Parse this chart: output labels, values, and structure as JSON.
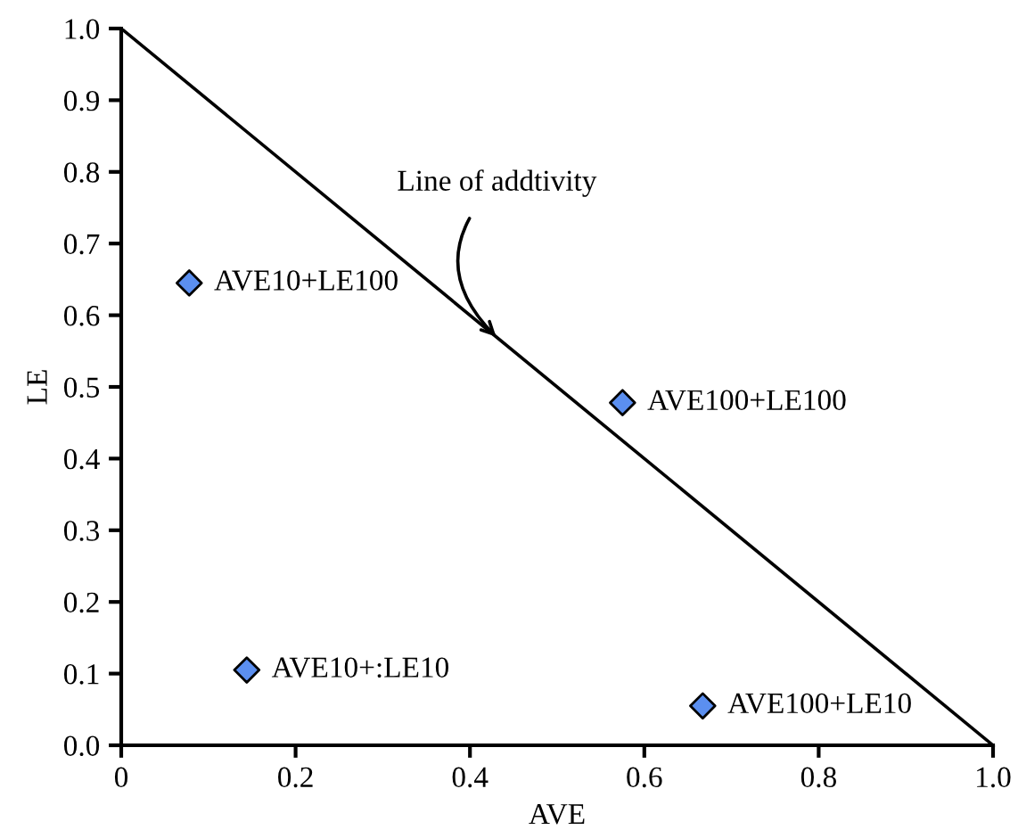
{
  "chart_data": {
    "type": "scatter",
    "xlabel": "AVE",
    "ylabel": "LE",
    "series": [
      {
        "type": "line",
        "x": [
          0,
          1
        ],
        "values": [
          1,
          0
        ],
        "color": "#000000",
        "marker": "none"
      },
      {
        "x": [
          0.078,
          0.144,
          0.575,
          0.667
        ],
        "values": [
          0.645,
          0.105,
          0.478,
          0.055
        ],
        "color": "#5b8ff0",
        "marker": "diamond"
      }
    ],
    "annotations": [
      {
        "text": "AVE10+LE100",
        "x": 0.078,
        "y": 0.645
      },
      {
        "text": "AVE10+:LE10",
        "x": 0.144,
        "y": 0.105
      },
      {
        "text": "AVE100+LE100",
        "x": 0.575,
        "y": 0.478
      },
      {
        "text": "AVE100+LE10",
        "x": 0.667,
        "y": 0.055
      },
      {
        "text": "Line of addtivity",
        "x": 0.43,
        "y": 0.57
      }
    ],
    "xlim": [
      0,
      1
    ],
    "ylim": [
      0,
      1
    ],
    "xticks": [
      0,
      0.2,
      0.4,
      0.6,
      0.8,
      {
        "value": 1,
        "label": "1.0"
      }
    ],
    "yticks": [
      {
        "value": 0,
        "label": "0.0"
      },
      0.1,
      0.2,
      0.3,
      0.4,
      0.5,
      0.6,
      0.7,
      0.8,
      0.9,
      {
        "value": 1,
        "label": "1.0"
      }
    ],
    "grid": false,
    "legend": false
  }
}
